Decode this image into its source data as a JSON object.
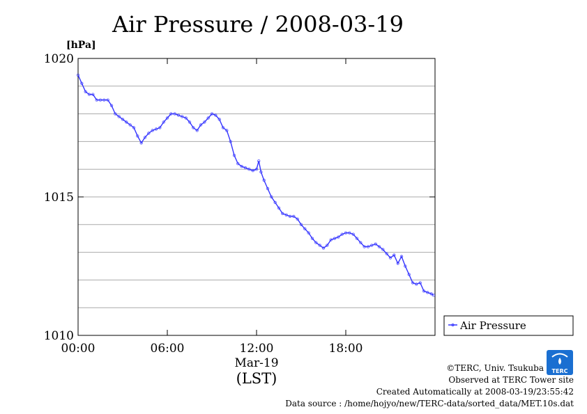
{
  "chart_data": {
    "type": "line",
    "title": "Air Pressure / 2008-03-19",
    "unit_label": "[hPa]",
    "ylim": [
      1010,
      1020
    ],
    "y_ticks": [
      {
        "value": 1010,
        "label": "1010"
      },
      {
        "value": 1015,
        "label": "1015"
      },
      {
        "value": 1020,
        "label": "1020"
      }
    ],
    "y_grid": [
      1011,
      1012,
      1013,
      1014,
      1015,
      1016,
      1017,
      1018,
      1019
    ],
    "xlim": [
      0,
      24
    ],
    "x_ticks": [
      {
        "value": 0,
        "label": "00:00"
      },
      {
        "value": 6,
        "label": "06:00"
      },
      {
        "value": 12,
        "label": "12:00"
      },
      {
        "value": 18,
        "label": "18:00"
      }
    ],
    "x_date_label": "Mar-19",
    "x_axis_label": "(LST)",
    "grid": "horizontal",
    "legend": {
      "position": "right",
      "label": "Air Pressure"
    },
    "color": "#3333ff",
    "series": [
      {
        "name": "Air Pressure",
        "points": [
          [
            0.0,
            1019.4
          ],
          [
            0.25,
            1019.1
          ],
          [
            0.5,
            1018.8
          ],
          [
            0.75,
            1018.7
          ],
          [
            1.0,
            1018.7
          ],
          [
            1.25,
            1018.5
          ],
          [
            1.5,
            1018.5
          ],
          [
            1.75,
            1018.5
          ],
          [
            2.0,
            1018.5
          ],
          [
            2.25,
            1018.3
          ],
          [
            2.5,
            1018.0
          ],
          [
            2.75,
            1017.9
          ],
          [
            3.0,
            1017.8
          ],
          [
            3.25,
            1017.7
          ],
          [
            3.5,
            1017.6
          ],
          [
            3.75,
            1017.5
          ],
          [
            4.0,
            1017.2
          ],
          [
            4.25,
            1016.95
          ],
          [
            4.5,
            1017.15
          ],
          [
            4.75,
            1017.3
          ],
          [
            5.0,
            1017.4
          ],
          [
            5.25,
            1017.45
          ],
          [
            5.5,
            1017.5
          ],
          [
            5.75,
            1017.7
          ],
          [
            6.0,
            1017.85
          ],
          [
            6.25,
            1018.0
          ],
          [
            6.5,
            1018.0
          ],
          [
            6.75,
            1017.95
          ],
          [
            7.0,
            1017.9
          ],
          [
            7.25,
            1017.85
          ],
          [
            7.5,
            1017.7
          ],
          [
            7.75,
            1017.5
          ],
          [
            8.0,
            1017.4
          ],
          [
            8.25,
            1017.6
          ],
          [
            8.5,
            1017.7
          ],
          [
            8.75,
            1017.85
          ],
          [
            9.0,
            1018.0
          ],
          [
            9.25,
            1017.95
          ],
          [
            9.5,
            1017.8
          ],
          [
            9.75,
            1017.5
          ],
          [
            10.0,
            1017.4
          ],
          [
            10.25,
            1017.0
          ],
          [
            10.5,
            1016.5
          ],
          [
            10.75,
            1016.2
          ],
          [
            11.0,
            1016.1
          ],
          [
            11.25,
            1016.05
          ],
          [
            11.5,
            1016.0
          ],
          [
            11.75,
            1015.95
          ],
          [
            12.0,
            1016.0
          ],
          [
            12.15,
            1016.3
          ],
          [
            12.3,
            1015.9
          ],
          [
            12.5,
            1015.6
          ],
          [
            12.75,
            1015.3
          ],
          [
            13.0,
            1015.0
          ],
          [
            13.25,
            1014.8
          ],
          [
            13.5,
            1014.6
          ],
          [
            13.75,
            1014.4
          ],
          [
            14.0,
            1014.35
          ],
          [
            14.25,
            1014.3
          ],
          [
            14.5,
            1014.3
          ],
          [
            14.75,
            1014.2
          ],
          [
            15.0,
            1014.0
          ],
          [
            15.25,
            1013.85
          ],
          [
            15.5,
            1013.7
          ],
          [
            15.75,
            1013.5
          ],
          [
            16.0,
            1013.35
          ],
          [
            16.25,
            1013.25
          ],
          [
            16.5,
            1013.15
          ],
          [
            16.75,
            1013.25
          ],
          [
            17.0,
            1013.45
          ],
          [
            17.25,
            1013.5
          ],
          [
            17.5,
            1013.55
          ],
          [
            17.75,
            1013.65
          ],
          [
            18.0,
            1013.7
          ],
          [
            18.25,
            1013.7
          ],
          [
            18.5,
            1013.65
          ],
          [
            18.75,
            1013.5
          ],
          [
            19.0,
            1013.35
          ],
          [
            19.25,
            1013.2
          ],
          [
            19.5,
            1013.2
          ],
          [
            19.75,
            1013.25
          ],
          [
            20.0,
            1013.3
          ],
          [
            20.25,
            1013.2
          ],
          [
            20.5,
            1013.1
          ],
          [
            20.75,
            1012.95
          ],
          [
            21.0,
            1012.8
          ],
          [
            21.25,
            1012.9
          ],
          [
            21.5,
            1012.6
          ],
          [
            21.75,
            1012.85
          ],
          [
            22.0,
            1012.5
          ],
          [
            22.25,
            1012.2
          ],
          [
            22.5,
            1011.9
          ],
          [
            22.75,
            1011.85
          ],
          [
            23.0,
            1011.9
          ],
          [
            23.25,
            1011.6
          ],
          [
            23.5,
            1011.55
          ],
          [
            23.75,
            1011.5
          ],
          [
            23.9,
            1011.45
          ]
        ]
      }
    ]
  },
  "footer": {
    "copyright": "©TERC, Univ. Tsukuba",
    "observed": "Observed at TERC Tower site",
    "created": "Created Automatically at 2008-03-19/23:55:42",
    "source": "Data source : /home/hojyo/new/TERC-data/sorted_data/MET.10s.dat",
    "logo_text": "TERC"
  }
}
